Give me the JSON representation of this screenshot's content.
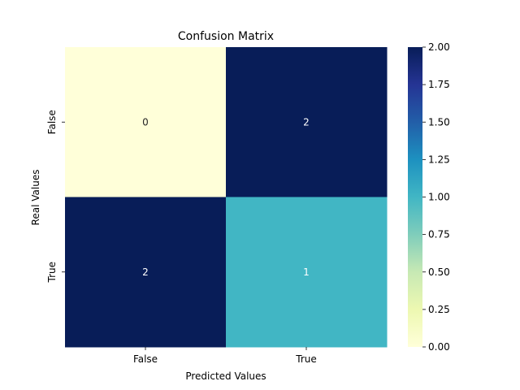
{
  "chart_data": {
    "type": "heatmap",
    "title": "Confusion Matrix",
    "xlabel": "Predicted Values",
    "ylabel": "Real Values",
    "x_categories": [
      "False",
      "True"
    ],
    "y_categories": [
      "False",
      "True"
    ],
    "values": [
      [
        0,
        2
      ],
      [
        2,
        1
      ]
    ],
    "colormap": "YlGnBu",
    "cell_colors": [
      [
        "#ffffd9",
        "#081d58"
      ],
      [
        "#081d58",
        "#41b6c4"
      ]
    ],
    "annotation_colors": [
      [
        "#262626",
        "#ffffff"
      ],
      [
        "#ffffff",
        "#ffffff"
      ]
    ],
    "colorbar": {
      "range": [
        0,
        2
      ],
      "ticks": [
        "0.00",
        "0.25",
        "0.50",
        "0.75",
        "1.00",
        "1.25",
        "1.50",
        "1.75",
        "2.00"
      ],
      "stops": [
        "#ffffd9",
        "#edf8b1",
        "#c7e9b4",
        "#7fcdbb",
        "#41b6c4",
        "#1d91c0",
        "#225ea8",
        "#253494",
        "#081d58"
      ]
    },
    "grid": false
  }
}
